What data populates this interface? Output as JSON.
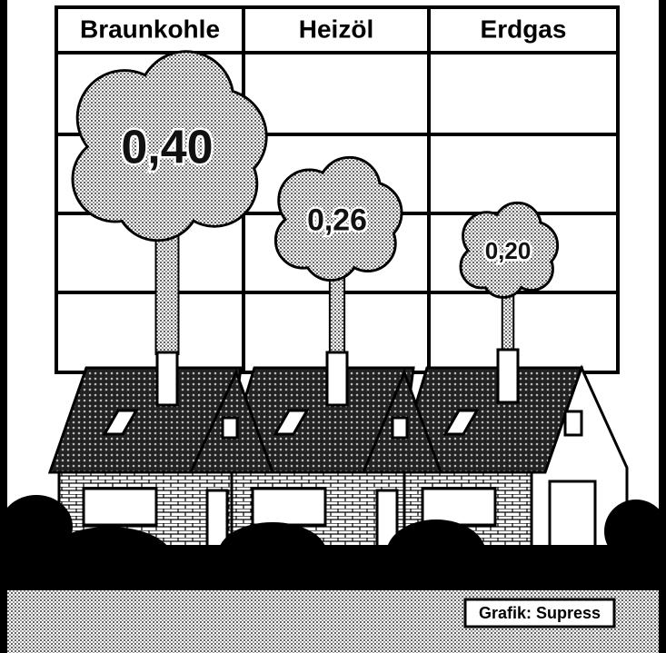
{
  "chart_data": {
    "type": "pictorial",
    "categories": [
      "Braunkohle",
      "Heizöl",
      "Erdgas"
    ],
    "values": [
      0.4,
      0.26,
      0.2
    ],
    "value_labels": [
      "0,40",
      "0,26",
      "0,20"
    ],
    "source": "Grafik: Supress"
  }
}
